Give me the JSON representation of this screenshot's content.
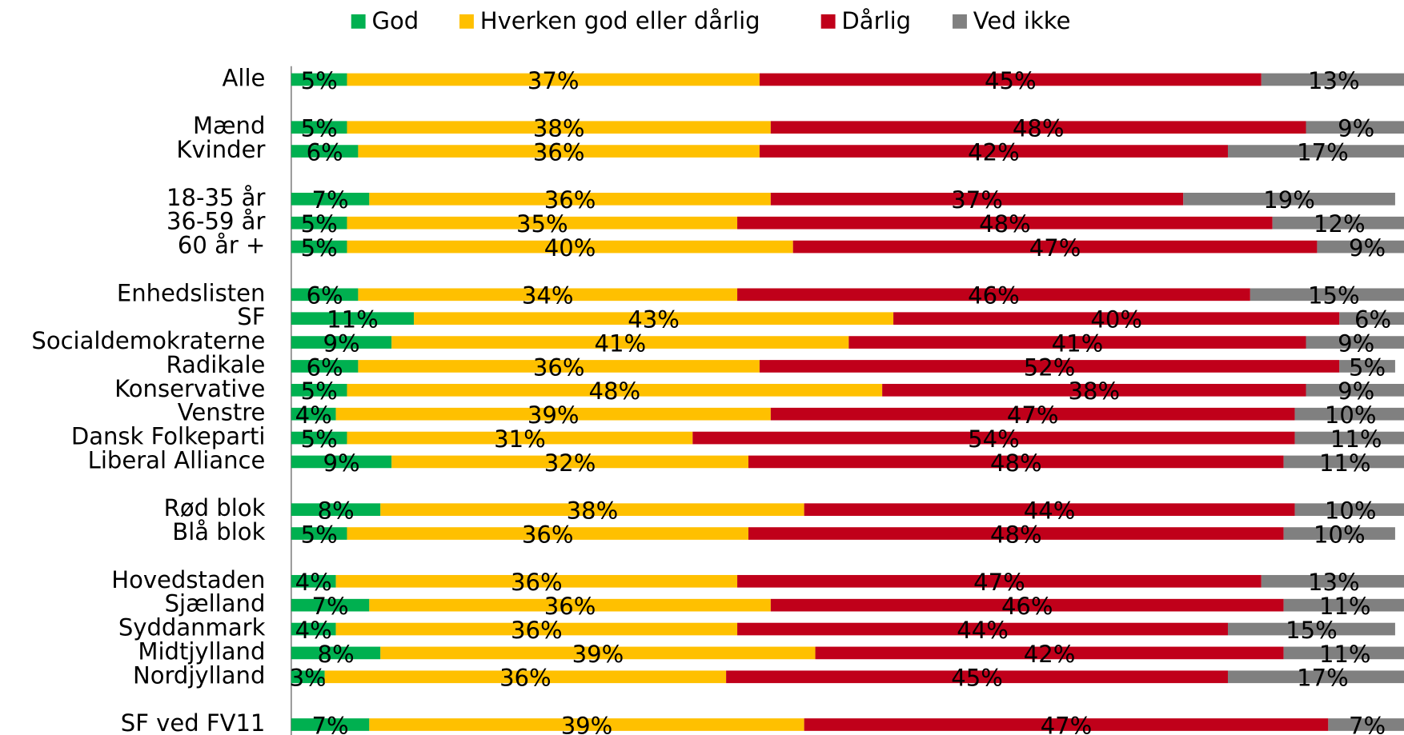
{
  "chart_data": {
    "type": "stacked-bar",
    "categories": [
      "Alle",
      null,
      "Mænd",
      "Kvinder",
      null,
      "18-35 år",
      "36-59 år",
      "60 år +",
      null,
      "Enhedslisten",
      "SF",
      "Socialdemokraterne",
      "Radikale",
      "Konservative",
      "Venstre",
      "Dansk Folkeparti",
      "Liberal Alliance",
      null,
      "Rød blok",
      "Blå blok",
      null,
      "Hovedstaden",
      "Sjælland",
      "Syddanmark",
      "Midtjylland",
      "Nordjylland",
      null,
      "SF ved FV11"
    ],
    "xlim": [
      0,
      100
    ],
    "legend": "top",
    "series": [
      {
        "name": "God",
        "color": "#00b050",
        "values": [
          5,
          null,
          5,
          6,
          null,
          7,
          5,
          5,
          null,
          6,
          11,
          9,
          6,
          5,
          4,
          5,
          9,
          null,
          8,
          5,
          null,
          4,
          7,
          4,
          8,
          3,
          null,
          7
        ],
        "value_labels": [
          "5%",
          null,
          "5%",
          "6%",
          null,
          "7%",
          "5%",
          "5%",
          null,
          "6%",
          "11%",
          "9%",
          "6%",
          "5%",
          "4%",
          "5%",
          "9%",
          null,
          "8%",
          "5%",
          null,
          "4%",
          "7%",
          "4%",
          "8%",
          "3%",
          null,
          "7%"
        ]
      },
      {
        "name": "Hverken god eller dårlig",
        "color": "#ffc000",
        "values": [
          37,
          null,
          38,
          36,
          null,
          36,
          35,
          40,
          null,
          34,
          43,
          41,
          36,
          48,
          39,
          31,
          32,
          null,
          38,
          36,
          null,
          36,
          36,
          36,
          39,
          36,
          null,
          39
        ],
        "value_labels": [
          "37%",
          null,
          "38%",
          "36%",
          null,
          "36%",
          "35%",
          "40%",
          null,
          "34%",
          "43%",
          "41%",
          "36%",
          "48%",
          "39%",
          "31%",
          "32%",
          null,
          "38%",
          "36%",
          null,
          "36%",
          "36%",
          "36%",
          "39%",
          "36%",
          null,
          "39%"
        ]
      },
      {
        "name": "Dårlig",
        "color": "#c0001a",
        "values": [
          45,
          null,
          48,
          42,
          null,
          37,
          48,
          47,
          null,
          46,
          40,
          41,
          52,
          38,
          47,
          54,
          48,
          null,
          44,
          48,
          null,
          47,
          46,
          44,
          42,
          45,
          null,
          47
        ],
        "value_labels": [
          "45%",
          null,
          "48%",
          "42%",
          null,
          "37%",
          "48%",
          "47%",
          null,
          "46%",
          "40%",
          "41%",
          "52%",
          "38%",
          "47%",
          "54%",
          "48%",
          null,
          "44%",
          "48%",
          null,
          "47%",
          "46%",
          "44%",
          "42%",
          "45%",
          null,
          "47%"
        ]
      },
      {
        "name": "Ved ikke",
        "color": "#808080",
        "values": [
          13,
          null,
          9,
          17,
          null,
          19,
          12,
          9,
          null,
          15,
          6,
          9,
          5,
          9,
          10,
          11,
          11,
          null,
          10,
          10,
          null,
          13,
          11,
          15,
          11,
          17,
          null,
          7
        ],
        "value_labels": [
          "13%",
          null,
          "9%",
          "17%",
          null,
          "19%",
          "12%",
          "9%",
          null,
          "15%",
          "6%",
          "9%",
          "5%",
          "9%",
          "10%",
          "11%",
          "11%",
          null,
          "10%",
          "10%",
          null,
          "13%",
          "11%",
          "15%",
          "11%",
          "17%",
          null,
          "7%"
        ]
      }
    ]
  }
}
